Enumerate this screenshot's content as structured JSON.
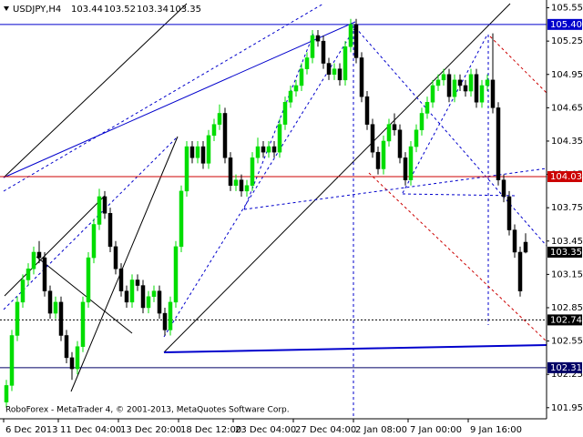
{
  "chart_data": {
    "type": "candlestick",
    "symbol": "USDJPY,H4",
    "footer": "RoboForex - MetaTrader 4, © 2001-2013, MetaQuotes Software Corp.",
    "categories": [
      "6 Dec 2013",
      null,
      null,
      null,
      null,
      null,
      null,
      null,
      null,
      null,
      "11 Dec 04:00",
      null,
      null,
      null,
      null,
      null,
      null,
      null,
      null,
      null,
      null,
      "13 Dec 20:00",
      null,
      null,
      null,
      null,
      null,
      null,
      null,
      null,
      null,
      null,
      "18 Dec 12:00",
      null,
      null,
      null,
      null,
      null,
      null,
      null,
      null,
      null,
      "23 Dec 04:00",
      null,
      null,
      null,
      null,
      null,
      null,
      null,
      null,
      null,
      null,
      "27 Dec 04:00",
      null,
      null,
      null,
      null,
      null,
      null,
      null,
      null,
      null,
      null,
      "2 Jan 08:00",
      null,
      null,
      null,
      null,
      null,
      null,
      null,
      null,
      null,
      "7 Jan 00:00",
      null,
      null,
      null,
      null,
      null,
      null,
      null,
      null,
      null,
      null,
      "9 Jan 16:00",
      null,
      null,
      null,
      null,
      null,
      null,
      null,
      null,
      null,
      null
    ],
    "open": [
      102.0,
      102.15,
      102.6,
      102.9,
      103.1,
      103.2,
      103.35,
      103.3,
      103.0,
      102.8,
      102.9,
      102.6,
      102.4,
      102.3,
      102.5,
      102.9,
      103.3,
      103.6,
      103.85,
      103.7,
      103.4,
      103.2,
      103.0,
      102.9,
      103.1,
      103.05,
      102.85,
      102.95,
      103.0,
      102.8,
      102.65,
      102.9,
      103.4,
      103.9,
      104.3,
      104.2,
      104.3,
      104.15,
      104.4,
      104.5,
      104.6,
      104.2,
      103.95,
      104.0,
      103.9,
      103.95,
      104.2,
      104.3,
      104.25,
      104.3,
      104.25,
      104.5,
      104.7,
      104.8,
      104.85,
      105.0,
      105.1,
      105.3,
      105.25,
      105.05,
      104.95,
      105.0,
      104.9,
      105.2,
      105.4,
      105.1,
      104.75,
      104.5,
      104.25,
      104.1,
      104.35,
      104.5,
      104.45,
      104.2,
      104.0,
      104.3,
      104.45,
      104.6,
      104.7,
      104.85,
      104.9,
      104.95,
      104.75,
      104.9,
      104.85,
      104.8,
      104.95,
      104.7,
      104.85,
      104.9,
      104.65,
      104.0,
      103.85,
      103.55,
      103.35,
      103.44
    ],
    "high": [
      102.2,
      102.65,
      102.95,
      103.15,
      103.25,
      103.4,
      103.45,
      103.35,
      103.05,
      102.95,
      102.95,
      102.65,
      102.45,
      102.55,
      102.95,
      103.35,
      103.65,
      103.92,
      103.9,
      103.75,
      103.45,
      103.25,
      103.05,
      103.15,
      103.15,
      103.1,
      103.0,
      103.05,
      103.05,
      102.85,
      102.95,
      103.45,
      103.95,
      104.35,
      104.35,
      104.35,
      104.35,
      104.45,
      104.55,
      104.68,
      104.65,
      104.25,
      104.05,
      104.05,
      104.0,
      104.25,
      104.38,
      104.35,
      104.35,
      104.35,
      104.55,
      104.75,
      104.85,
      104.9,
      105.05,
      105.15,
      105.35,
      105.35,
      105.3,
      105.1,
      105.05,
      105.05,
      105.25,
      105.45,
      105.45,
      105.15,
      104.8,
      104.55,
      104.3,
      104.4,
      104.55,
      104.6,
      104.5,
      104.25,
      104.35,
      104.5,
      104.65,
      104.75,
      104.9,
      104.95,
      105.0,
      105.0,
      104.95,
      104.95,
      104.9,
      105.0,
      105.0,
      104.9,
      104.95,
      105.32,
      104.7,
      104.05,
      103.9,
      103.6,
      103.4,
      103.52
    ],
    "low": [
      101.95,
      102.1,
      102.55,
      102.85,
      103.05,
      103.15,
      103.25,
      102.95,
      102.75,
      102.75,
      102.55,
      102.35,
      102.2,
      102.25,
      102.45,
      102.85,
      103.25,
      103.55,
      103.65,
      103.35,
      103.15,
      102.95,
      102.85,
      102.85,
      103.0,
      102.8,
      102.8,
      102.9,
      102.75,
      102.6,
      102.6,
      102.85,
      103.35,
      103.85,
      104.15,
      104.15,
      104.1,
      104.1,
      104.35,
      104.45,
      104.15,
      103.9,
      103.9,
      103.85,
      103.85,
      103.9,
      104.15,
      104.2,
      104.2,
      104.2,
      104.2,
      104.45,
      104.65,
      104.75,
      104.8,
      104.95,
      105.05,
      105.2,
      105.0,
      104.9,
      104.9,
      104.85,
      104.85,
      105.15,
      105.05,
      104.7,
      104.45,
      104.2,
      104.05,
      104.05,
      104.3,
      104.4,
      104.15,
      103.95,
      103.95,
      104.25,
      104.4,
      104.55,
      104.65,
      104.8,
      104.85,
      104.7,
      104.7,
      104.8,
      104.75,
      104.75,
      104.65,
      104.65,
      104.8,
      104.6,
      103.95,
      103.8,
      103.5,
      103.3,
      102.95,
      103.34
    ],
    "close": [
      102.15,
      102.6,
      102.9,
      103.1,
      103.2,
      103.35,
      103.3,
      103.0,
      102.8,
      102.9,
      102.6,
      102.4,
      102.3,
      102.5,
      102.9,
      103.3,
      103.6,
      103.85,
      103.7,
      103.4,
      103.2,
      103.0,
      102.9,
      103.1,
      103.05,
      102.85,
      102.95,
      103.0,
      102.8,
      102.65,
      102.9,
      103.4,
      103.9,
      104.3,
      104.2,
      104.3,
      104.15,
      104.4,
      104.5,
      104.6,
      104.2,
      103.95,
      104.0,
      103.9,
      103.95,
      104.2,
      104.3,
      104.25,
      104.3,
      104.25,
      104.5,
      104.7,
      104.8,
      104.85,
      105.0,
      105.1,
      105.3,
      105.25,
      105.05,
      104.95,
      105.0,
      104.9,
      105.2,
      105.4,
      105.1,
      104.75,
      104.5,
      104.25,
      104.1,
      104.35,
      104.5,
      104.45,
      104.2,
      104.0,
      104.3,
      104.45,
      104.6,
      104.7,
      104.85,
      104.9,
      104.95,
      104.75,
      104.9,
      104.85,
      104.8,
      104.95,
      104.7,
      104.85,
      104.9,
      104.65,
      104.0,
      103.85,
      103.55,
      103.35,
      103.0,
      103.35
    ],
    "up_color": "#00dd00",
    "down_color": "#000000",
    "ylim": [
      101.85,
      105.62
    ],
    "yticks": [
      101.95,
      102.25,
      102.55,
      102.85,
      103.15,
      103.45,
      103.75,
      104.05,
      104.35,
      104.65,
      104.95,
      105.25,
      105.55
    ],
    "hlines": [
      {
        "value": 105.4,
        "label": "105.40",
        "color": "#0000cc"
      },
      {
        "value": 104.03,
        "color": "#cc0000"
      },
      {
        "value": 102.74,
        "color": "#000000"
      },
      {
        "value": 102.31,
        "color": "#000066"
      }
    ]
  }
}
